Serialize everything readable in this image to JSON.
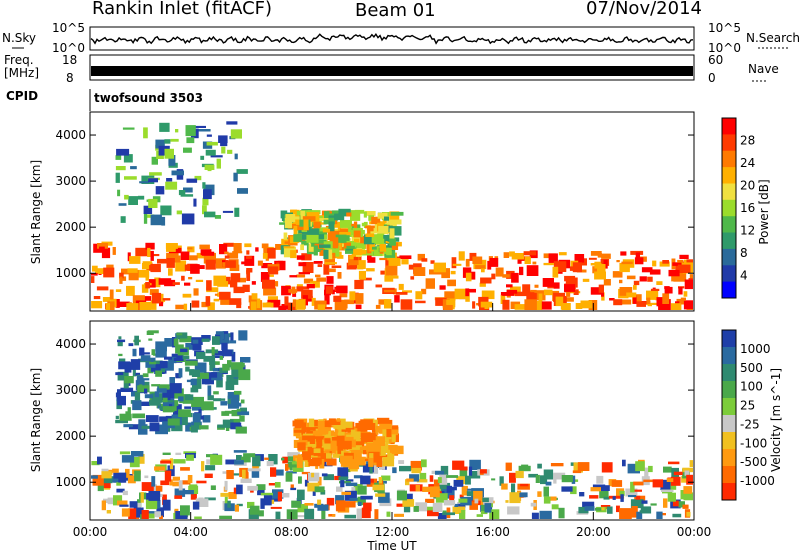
{
  "header": {
    "station_title": "Rankin Inlet (fitACF)",
    "beam": "Beam 01",
    "date": "07/Nov/2014"
  },
  "top_panels": {
    "nsky_label": "N.Sky",
    "nsky_ticks": [
      "10^5",
      "10^0"
    ],
    "nsky_right_ticks": [
      "10^5",
      "10^0"
    ],
    "nsearch_label": "N.Search",
    "freq_label": "Freq.",
    "freq_unit": "[MHz]",
    "freq_ticks": [
      "18",
      "8"
    ],
    "nave_ticks": [
      "60",
      "0"
    ],
    "nave_label": "Nave",
    "cpid_label": "CPID",
    "cpid_value": "twofsound 3503"
  },
  "chart_data": [
    {
      "type": "heatmap",
      "panel": "power",
      "ylabel": "Slant Range [km]",
      "ylim": [
        180,
        4500
      ],
      "yticks": [
        1000,
        2000,
        3000,
        4000
      ],
      "xlim": [
        0,
        24
      ],
      "colorbar": {
        "label": "Power [dB]",
        "ticks": [
          "28",
          "24",
          "20",
          "16",
          "12",
          "8",
          "4"
        ],
        "colors": [
          "#ff0000",
          "#ff3a00",
          "#ff7a00",
          "#ffb000",
          "#f0e040",
          "#9bdc2c",
          "#4fb84a",
          "#2f9a6a",
          "#2a6a9a",
          "#203aa8",
          "#0000ff"
        ]
      },
      "echo_bands": [
        {
          "t0": 0.0,
          "t1": 10.5,
          "r0": 250,
          "r1": 1700,
          "level": "high"
        },
        {
          "t0": 10.5,
          "t1": 24.0,
          "r0": 300,
          "r1": 1500,
          "level": "high"
        },
        {
          "t0": 7.5,
          "t1": 12.0,
          "r0": 1500,
          "r1": 2400,
          "level": "medium"
        },
        {
          "t0": 1.0,
          "t1": 6.0,
          "r0": 2200,
          "r1": 4300,
          "level": "low"
        }
      ]
    },
    {
      "type": "heatmap",
      "panel": "velocity",
      "ylabel": "Slant Range [km]",
      "xlabel": "Time UT",
      "ylim": [
        180,
        4500
      ],
      "yticks": [
        1000,
        2000,
        3000,
        4000
      ],
      "xlim": [
        0,
        24
      ],
      "xticks": [
        "00:00",
        "04:00",
        "08:00",
        "12:00",
        "16:00",
        "20:00",
        "00:00"
      ],
      "colorbar": {
        "label": "Velocity [m s^-1]",
        "ticks": [
          "1000",
          "500",
          "100",
          "25",
          "-25",
          "-100",
          "-500",
          "-1000"
        ],
        "colors": [
          "#1f3fa8",
          "#2a6aa0",
          "#2f8a70",
          "#4aa84a",
          "#7ccc3a",
          "#c8c8c8",
          "#f0c020",
          "#ff9a10",
          "#ff6a00",
          "#ff2a00"
        ]
      },
      "echo_bands": [
        {
          "t0": 0.0,
          "t1": 10.5,
          "r0": 250,
          "r1": 1700,
          "level": "mixed"
        },
        {
          "t0": 10.5,
          "t1": 24.0,
          "r0": 300,
          "r1": 1500,
          "level": "mixed"
        },
        {
          "t0": 8.0,
          "t1": 12.0,
          "r0": 1500,
          "r1": 2400,
          "level": "negative"
        },
        {
          "t0": 1.0,
          "t1": 6.0,
          "r0": 2200,
          "r1": 4300,
          "level": "positive"
        }
      ]
    }
  ]
}
